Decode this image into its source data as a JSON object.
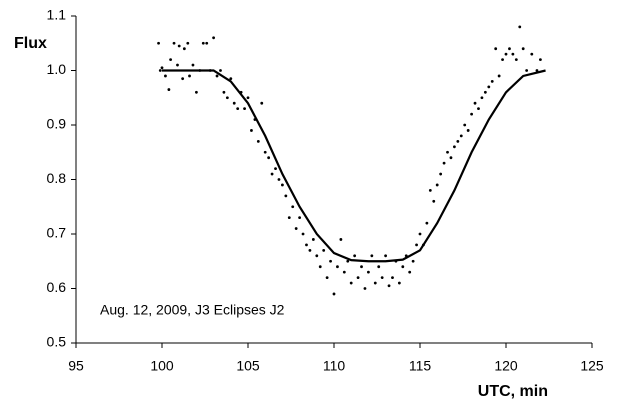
{
  "chart_data": {
    "type": "scatter",
    "annotation": "Aug. 12, 2009, J3 Eclipses J2",
    "y_label": "Flux",
    "x_label": "UTC, min",
    "xlim": [
      95,
      125
    ],
    "xticks": [
      95,
      100,
      105,
      110,
      115,
      120,
      125
    ],
    "ylim": [
      0.5,
      1.1
    ],
    "yticks": [
      0.5,
      0.6,
      0.7,
      0.8,
      0.9,
      {
        "value": 1.0,
        "label": "1.0"
      },
      1.1
    ],
    "series": [
      {
        "type": "scatter",
        "color": "#000000",
        "x": [
          99.8,
          99.9,
          100.0,
          100.2,
          100.4,
          100.5,
          100.7,
          100.9,
          101.0,
          101.2,
          101.3,
          101.5,
          101.6,
          101.8,
          102.0,
          102.2,
          102.4,
          102.6,
          102.8,
          103.0,
          103.2,
          103.4,
          103.6,
          103.8,
          104.0,
          104.2,
          104.4,
          104.6,
          104.8,
          105.0,
          105.2,
          105.4,
          105.6,
          105.8,
          106.0,
          106.2,
          106.4,
          106.6,
          106.8,
          107.0,
          107.2,
          107.4,
          107.6,
          107.8,
          108.0,
          108.2,
          108.4,
          108.6,
          108.8,
          109.0,
          109.2,
          109.4,
          109.6,
          109.8,
          110.0,
          110.2,
          110.4,
          110.6,
          110.8,
          111.0,
          111.2,
          111.4,
          111.6,
          111.8,
          112.0,
          112.2,
          112.4,
          112.6,
          112.8,
          113.0,
          113.2,
          113.4,
          113.6,
          113.8,
          114.0,
          114.2,
          114.4,
          114.6,
          114.8,
          115.0,
          115.2,
          115.4,
          115.6,
          115.8,
          116.0,
          116.2,
          116.4,
          116.6,
          116.8,
          117.0,
          117.2,
          117.4,
          117.6,
          117.8,
          118.0,
          118.2,
          118.4,
          118.6,
          118.8,
          119.0,
          119.2,
          119.4,
          119.6,
          119.8,
          120.0,
          120.2,
          120.4,
          120.6,
          120.8,
          121.0,
          121.2,
          121.5,
          121.8,
          122.0
        ],
        "values": [
          1.05,
          1.0,
          1.005,
          0.99,
          0.965,
          1.02,
          1.05,
          1.01,
          1.045,
          0.985,
          1.04,
          1.05,
          0.99,
          1.01,
          0.96,
          1.0,
          1.05,
          1.05,
          1.0,
          1.06,
          0.99,
          1.0,
          0.96,
          0.95,
          0.985,
          0.94,
          0.93,
          0.96,
          0.93,
          0.95,
          0.89,
          0.91,
          0.87,
          0.94,
          0.85,
          0.84,
          0.81,
          0.82,
          0.8,
          0.79,
          0.77,
          0.73,
          0.75,
          0.71,
          0.73,
          0.7,
          0.68,
          0.67,
          0.69,
          0.66,
          0.64,
          0.67,
          0.62,
          0.65,
          0.59,
          0.64,
          0.69,
          0.63,
          0.65,
          0.61,
          0.66,
          0.62,
          0.64,
          0.6,
          0.63,
          0.66,
          0.61,
          0.64,
          0.62,
          0.66,
          0.605,
          0.62,
          0.65,
          0.61,
          0.64,
          0.66,
          0.63,
          0.65,
          0.68,
          0.7,
          0.68,
          0.72,
          0.78,
          0.76,
          0.79,
          0.81,
          0.83,
          0.85,
          0.84,
          0.86,
          0.87,
          0.88,
          0.9,
          0.89,
          0.92,
          0.94,
          0.93,
          0.95,
          0.96,
          0.97,
          0.98,
          1.04,
          0.99,
          1.02,
          1.03,
          1.04,
          1.03,
          1.02,
          1.08,
          1.04,
          1.0,
          1.03,
          1.0,
          1.02
        ]
      },
      {
        "type": "line",
        "color": "#000000",
        "x": [
          100,
          103,
          104,
          105,
          106,
          107,
          108,
          109,
          110,
          111,
          112,
          113,
          114,
          115,
          116,
          117,
          118,
          119,
          120,
          121,
          122.3
        ],
        "values": [
          1.0,
          1.0,
          0.98,
          0.94,
          0.88,
          0.81,
          0.75,
          0.7,
          0.665,
          0.652,
          0.65,
          0.65,
          0.653,
          0.67,
          0.72,
          0.78,
          0.85,
          0.91,
          0.96,
          0.99,
          1.0
        ]
      }
    ]
  }
}
